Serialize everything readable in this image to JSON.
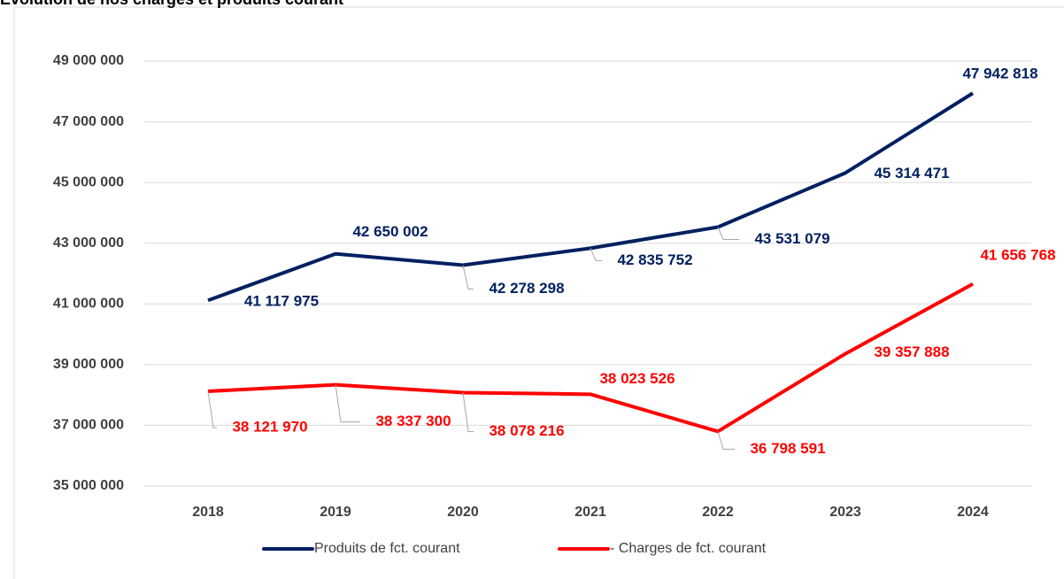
{
  "chart_data": {
    "type": "line",
    "title": "Evolution de nos charges et produits courant",
    "categories": [
      "2018",
      "2019",
      "2020",
      "2021",
      "2022",
      "2023",
      "2024"
    ],
    "series": [
      {
        "name": "Produits de fct. courant",
        "color": "#002060",
        "values": [
          41117975,
          42650002,
          42278298,
          42835752,
          43531079,
          45314471,
          47942818
        ],
        "value_labels": [
          "41 117 975",
          "42 650 002",
          "42 278 298",
          "42 835 752",
          "43 531 079",
          "45 314 471",
          "47 942 818"
        ]
      },
      {
        "name": "- Charges de fct. courant",
        "color": "#ff0000",
        "values": [
          38121970,
          38337300,
          38078216,
          38023526,
          36798591,
          39357888,
          41656768
        ],
        "value_labels": [
          "38 121 970",
          "38 337 300",
          "38 078 216",
          "38 023 526",
          "36 798 591",
          "39 357 888",
          "41 656 768"
        ]
      }
    ],
    "ylim": [
      35000000,
      49000000
    ],
    "yticks": [
      {
        "value": 35000000,
        "label": "35 000 000"
      },
      {
        "value": 37000000,
        "label": "37 000 000"
      },
      {
        "value": 39000000,
        "label": "39 000 000"
      },
      {
        "value": 41000000,
        "label": "41 000 000"
      },
      {
        "value": 43000000,
        "label": "43 000 000"
      },
      {
        "value": 45000000,
        "label": "45 000 000"
      },
      {
        "value": 47000000,
        "label": "47 000 000"
      },
      {
        "value": 49000000,
        "label": "49 000 000"
      }
    ],
    "grid": true,
    "legend": "bottom"
  }
}
